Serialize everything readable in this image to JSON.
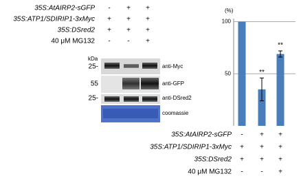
{
  "blot": {
    "rows": [
      {
        "label": "35S:AtAIRP2-sGFP",
        "signs": [
          "-",
          "+",
          "+"
        ]
      },
      {
        "label": "35S:ATP1/SDIRIP1-3xMyc",
        "signs": [
          "+",
          "+",
          "+"
        ]
      },
      {
        "label": "35S:DSred2",
        "signs": [
          "+",
          "+",
          "+"
        ]
      },
      {
        "label": "40 μM MG132",
        "signs": [
          "-",
          "-",
          "+"
        ]
      }
    ],
    "kda_label": "kDa",
    "panels": [
      {
        "marker": "25-",
        "label": "anti-Myc"
      },
      {
        "marker": "55",
        "label": "anti-GFP"
      },
      {
        "marker": "25-",
        "label": "anti-DSred2"
      },
      {
        "marker": null,
        "label": "coomassie"
      }
    ]
  },
  "chart_data": {
    "type": "bar",
    "y_label": "(%)",
    "values": [
      100,
      35,
      69
    ],
    "errors": [
      null,
      11,
      3
    ],
    "value_labels": [
      null,
      "**",
      "**"
    ],
    "color": "#4a7ebb",
    "ylim": [
      0,
      103
    ],
    "yticks": [
      50,
      100
    ],
    "grid": true,
    "treatments": [
      {
        "label": "35S:AtAIRP2-sGFP",
        "signs": [
          "-",
          "+",
          "+"
        ]
      },
      {
        "label": "35S:ATP1/SDIRIP1-3xMyc",
        "signs": [
          "+",
          "+",
          "+"
        ]
      },
      {
        "label": "35S:DSred2",
        "signs": [
          "+",
          "+",
          "+"
        ]
      },
      {
        "label": "40 μM MG132",
        "signs": [
          "-",
          "-",
          "+"
        ]
      }
    ]
  }
}
